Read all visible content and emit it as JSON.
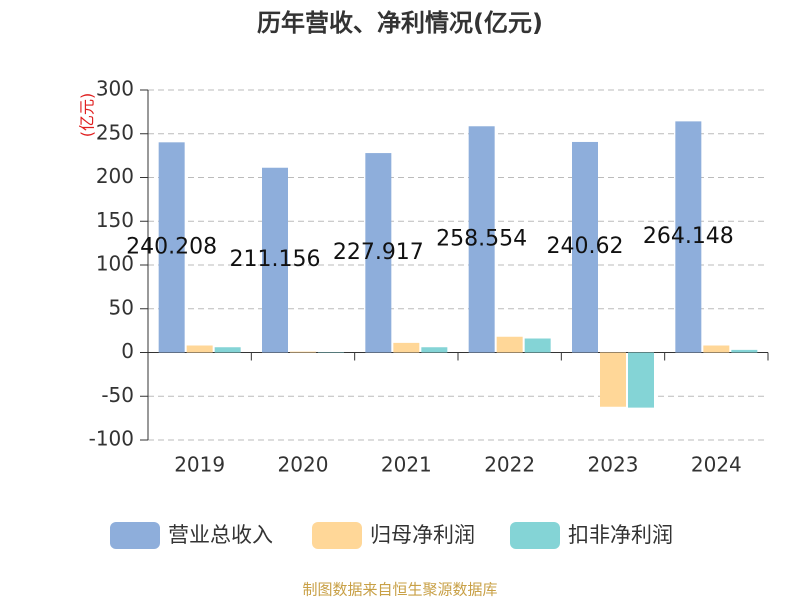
{
  "chart_data": {
    "type": "bar",
    "title": "历年营收、净利情况(亿元)",
    "ylabel": "(亿元)",
    "categories": [
      "2019",
      "2020",
      "2021",
      "2022",
      "2023",
      "2024"
    ],
    "series": [
      {
        "name": "营业总收入",
        "color": "#8eaedb",
        "values": [
          240.208,
          211.156,
          227.917,
          258.554,
          240.62,
          264.148
        ]
      },
      {
        "name": "归母净利润",
        "color": "#ffd798",
        "values": [
          8,
          1,
          11,
          18,
          -62,
          8
        ]
      },
      {
        "name": "扣非净利润",
        "color": "#84d4d6",
        "values": [
          6,
          0.5,
          6,
          16,
          -63,
          3
        ]
      }
    ],
    "ylim": [
      -100,
      300
    ],
    "yticks": [
      -100,
      -50,
      0,
      50,
      100,
      150,
      200,
      250,
      300
    ],
    "grid": true,
    "legend": "bottom",
    "source": "制图数据来自恒生聚源数据库"
  }
}
